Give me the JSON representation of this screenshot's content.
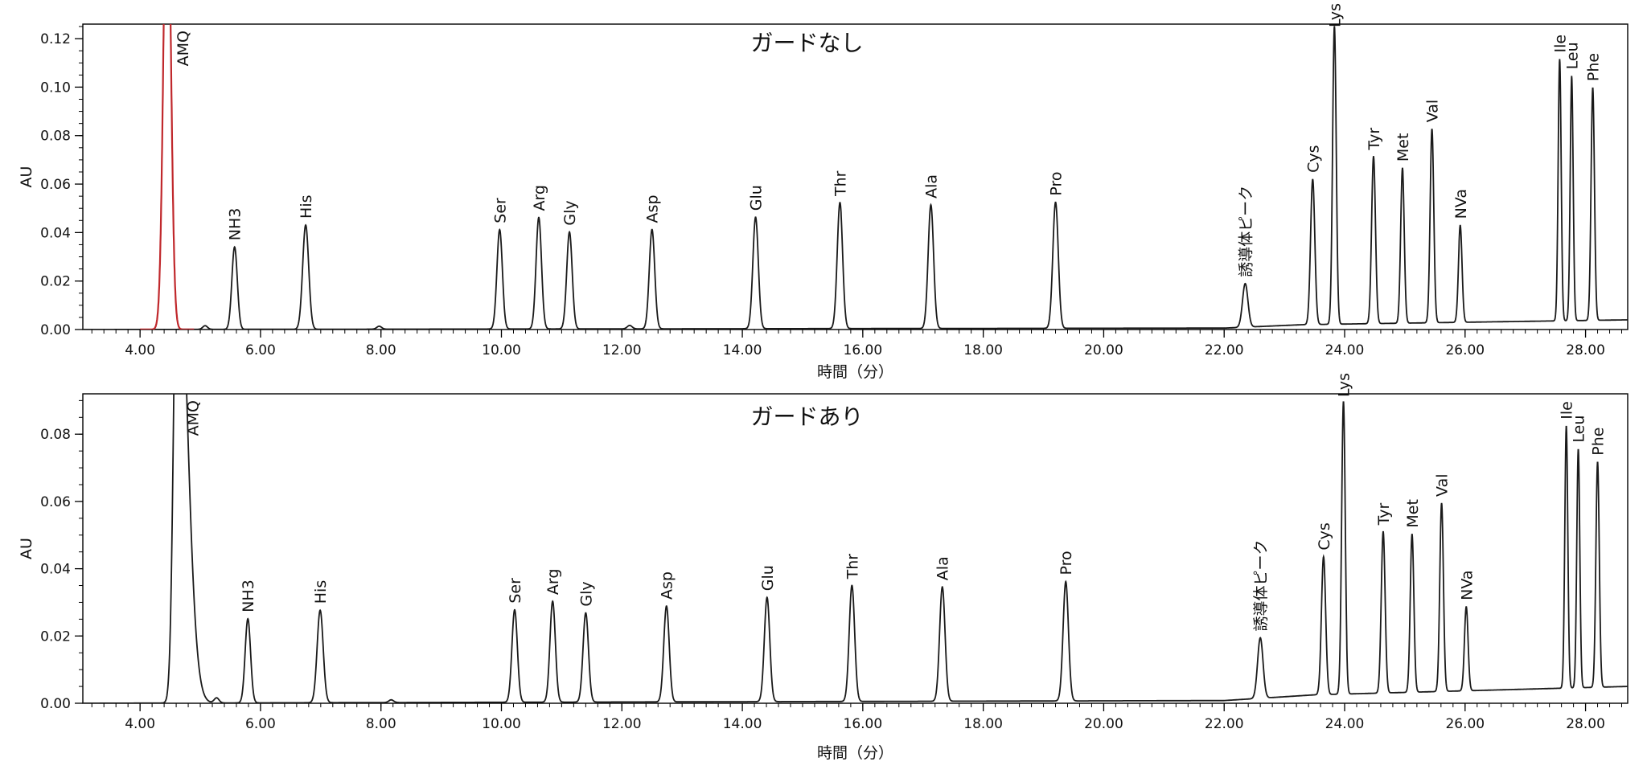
{
  "chart_data": [
    {
      "type": "line",
      "title": "ガードなし",
      "xlabel": "時間（分）",
      "ylabel": "AU",
      "xlim": [
        3.05,
        28.7
      ],
      "ylim": [
        0.0,
        0.126
      ],
      "x_ticks": [
        "4.00",
        "6.00",
        "8.00",
        "10.00",
        "12.00",
        "14.00",
        "16.00",
        "18.00",
        "20.00",
        "22.00",
        "24.00",
        "26.00",
        "28.00"
      ],
      "y_ticks": [
        "0.00",
        "0.02",
        "0.04",
        "0.06",
        "0.08",
        "0.10",
        "0.12"
      ],
      "baseline_drift": [
        [
          3.05,
          0.0
        ],
        [
          22.0,
          0.0006
        ],
        [
          23.3,
          0.002
        ],
        [
          28.7,
          0.004
        ]
      ],
      "highlight_color": "#c0282c",
      "line_color": "#1a1a1a",
      "peaks": [
        {
          "label": "AMQ",
          "rt": 4.45,
          "height": 0.2,
          "width": 0.06,
          "highlight": true
        },
        {
          "label": "",
          "rt": 5.08,
          "height": 0.0015,
          "width": 0.04
        },
        {
          "label": "NH3",
          "rt": 5.57,
          "height": 0.034,
          "width": 0.045
        },
        {
          "label": "His",
          "rt": 6.75,
          "height": 0.043,
          "width": 0.05
        },
        {
          "label": "",
          "rt": 7.97,
          "height": 0.0012,
          "width": 0.04
        },
        {
          "label": "Ser",
          "rt": 9.97,
          "height": 0.041,
          "width": 0.045
        },
        {
          "label": "Arg",
          "rt": 10.62,
          "height": 0.046,
          "width": 0.045
        },
        {
          "label": "Gly",
          "rt": 11.13,
          "height": 0.04,
          "width": 0.045
        },
        {
          "label": "",
          "rt": 12.13,
          "height": 0.0014,
          "width": 0.04
        },
        {
          "label": "Asp",
          "rt": 12.5,
          "height": 0.041,
          "width": 0.045
        },
        {
          "label": "Glu",
          "rt": 14.22,
          "height": 0.046,
          "width": 0.045
        },
        {
          "label": "Thr",
          "rt": 15.62,
          "height": 0.052,
          "width": 0.045
        },
        {
          "label": "Ala",
          "rt": 17.13,
          "height": 0.051,
          "width": 0.045
        },
        {
          "label": "Pro",
          "rt": 19.2,
          "height": 0.052,
          "width": 0.045
        },
        {
          "label": "誘導体ピーク",
          "rt": 22.35,
          "height": 0.018,
          "width": 0.045
        },
        {
          "label": "Cys",
          "rt": 23.47,
          "height": 0.06,
          "width": 0.035
        },
        {
          "label": "Lys",
          "rt": 23.83,
          "height": 0.123,
          "width": 0.03
        },
        {
          "label": "Tyr",
          "rt": 24.48,
          "height": 0.069,
          "width": 0.032
        },
        {
          "label": "Met",
          "rt": 24.96,
          "height": 0.064,
          "width": 0.03
        },
        {
          "label": "Val",
          "rt": 25.45,
          "height": 0.08,
          "width": 0.03
        },
        {
          "label": "NVa",
          "rt": 25.92,
          "height": 0.04,
          "width": 0.03
        },
        {
          "label": "Ile",
          "rt": 27.57,
          "height": 0.108,
          "width": 0.025
        },
        {
          "label": "Leu",
          "rt": 27.77,
          "height": 0.101,
          "width": 0.025
        },
        {
          "label": "Phe",
          "rt": 28.12,
          "height": 0.096,
          "width": 0.028
        }
      ]
    },
    {
      "type": "line",
      "title": "ガードあり",
      "xlabel": "時間（分）",
      "ylabel": "AU",
      "xlim": [
        3.05,
        28.7
      ],
      "ylim": [
        0.0,
        0.092
      ],
      "x_ticks": [
        "4.00",
        "6.00",
        "8.00",
        "10.00",
        "12.00",
        "14.00",
        "16.00",
        "18.00",
        "20.00",
        "22.00",
        "24.00",
        "26.00",
        "28.00"
      ],
      "y_ticks": [
        "0.00",
        "0.02",
        "0.04",
        "0.06",
        "0.08"
      ],
      "baseline_drift": [
        [
          3.05,
          0.0
        ],
        [
          22.0,
          0.0008
        ],
        [
          23.5,
          0.0025
        ],
        [
          28.7,
          0.005
        ]
      ],
      "line_color": "#1a1a1a",
      "peaks": [
        {
          "label": "AMQ",
          "rt": 4.62,
          "height": 0.15,
          "width": 0.06,
          "tail": true
        },
        {
          "label": "",
          "rt": 5.27,
          "height": 0.0015,
          "width": 0.04
        },
        {
          "label": "NH3",
          "rt": 5.79,
          "height": 0.025,
          "width": 0.045
        },
        {
          "label": "His",
          "rt": 6.99,
          "height": 0.0275,
          "width": 0.05
        },
        {
          "label": "",
          "rt": 8.17,
          "height": 0.0008,
          "width": 0.04
        },
        {
          "label": "Ser",
          "rt": 10.22,
          "height": 0.0275,
          "width": 0.045
        },
        {
          "label": "Arg",
          "rt": 10.85,
          "height": 0.03,
          "width": 0.045
        },
        {
          "label": "Gly",
          "rt": 11.4,
          "height": 0.0265,
          "width": 0.045
        },
        {
          "label": "Asp",
          "rt": 12.74,
          "height": 0.0285,
          "width": 0.045
        },
        {
          "label": "Glu",
          "rt": 14.41,
          "height": 0.031,
          "width": 0.045
        },
        {
          "label": "Thr",
          "rt": 15.82,
          "height": 0.0345,
          "width": 0.045
        },
        {
          "label": "Ala",
          "rt": 17.32,
          "height": 0.034,
          "width": 0.045
        },
        {
          "label": "Pro",
          "rt": 19.37,
          "height": 0.0355,
          "width": 0.045
        },
        {
          "label": "誘導体ピーク",
          "rt": 22.6,
          "height": 0.018,
          "width": 0.045
        },
        {
          "label": "Cys",
          "rt": 23.65,
          "height": 0.041,
          "width": 0.035
        },
        {
          "label": "Lys",
          "rt": 23.98,
          "height": 0.087,
          "width": 0.03
        },
        {
          "label": "Tyr",
          "rt": 24.64,
          "height": 0.048,
          "width": 0.032
        },
        {
          "label": "Met",
          "rt": 25.12,
          "height": 0.047,
          "width": 0.03
        },
        {
          "label": "Val",
          "rt": 25.61,
          "height": 0.056,
          "width": 0.03
        },
        {
          "label": "NVa",
          "rt": 26.02,
          "height": 0.025,
          "width": 0.03
        },
        {
          "label": "Ile",
          "rt": 27.68,
          "height": 0.078,
          "width": 0.025
        },
        {
          "label": "Leu",
          "rt": 27.88,
          "height": 0.071,
          "width": 0.025
        },
        {
          "label": "Phe",
          "rt": 28.2,
          "height": 0.067,
          "width": 0.028
        }
      ]
    }
  ]
}
